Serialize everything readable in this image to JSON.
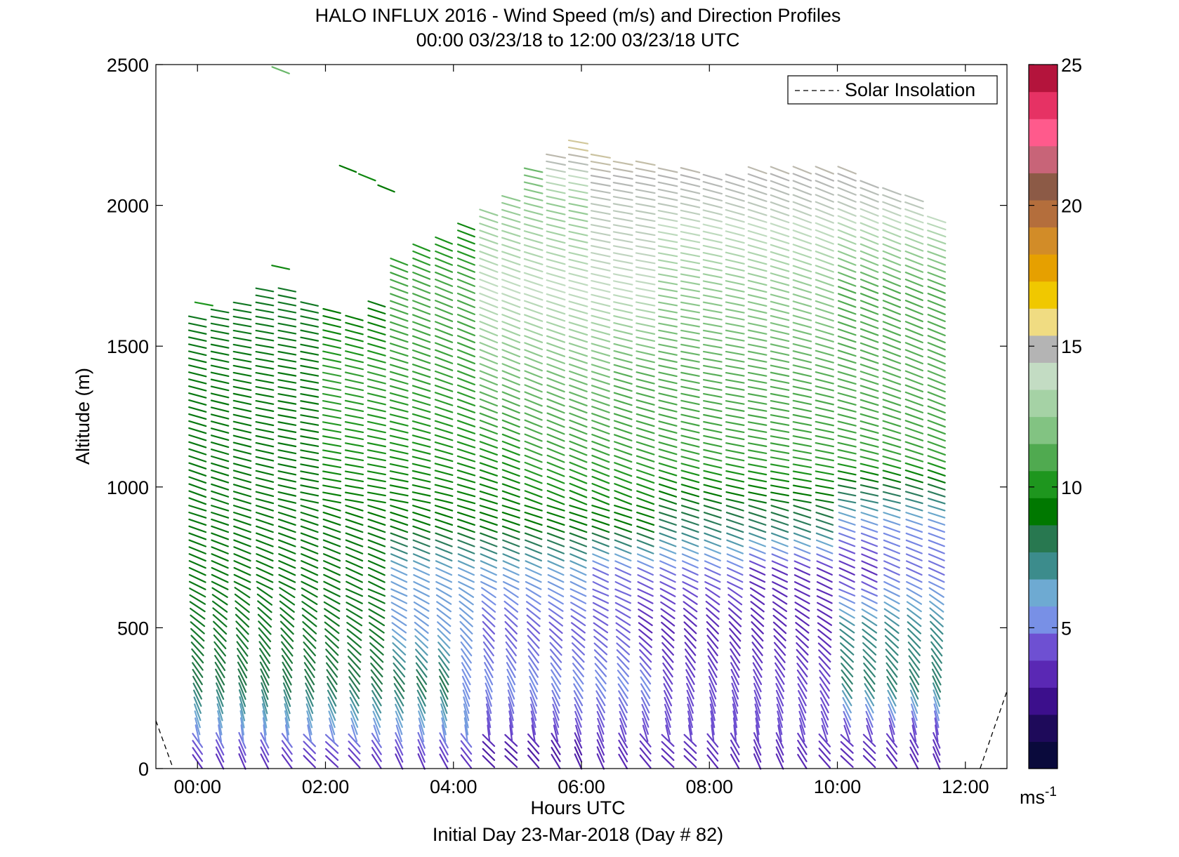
{
  "chart_data": {
    "type": "scatter",
    "title": "HALO INFLUX 2016 - Wind Speed (m/s) and Direction Profiles",
    "subtitle": "00:00 03/23/18 to 12:00 03/23/18  UTC",
    "xlabel": "Hours UTC",
    "ylabel": "Altitude (m)",
    "footer": "Initial Day 23-Mar-2018 (Day # 82)",
    "xlim": [
      -0.65,
      12.65
    ],
    "ylim": [
      0,
      2500
    ],
    "x_ticks": [
      0,
      2,
      4,
      6,
      8,
      10,
      12
    ],
    "x_tick_labels": [
      "00:00",
      "02:00",
      "04:00",
      "06:00",
      "08:00",
      "10:00",
      "12:00"
    ],
    "y_ticks": [
      0,
      500,
      1000,
      1500,
      2000,
      2500
    ],
    "y_tick_labels": [
      "0",
      "500",
      "1000",
      "1500",
      "2000",
      "2500"
    ],
    "grid": false,
    "legend": {
      "placement": "top-right",
      "entries": [
        "Solar Insolation"
      ]
    },
    "colorbar": {
      "min": 0,
      "max": 25,
      "ticks": [
        5,
        10,
        15,
        20,
        25
      ],
      "tick_labels": [
        "5",
        "10",
        "15",
        "20",
        "25"
      ],
      "unit_label": "ms",
      "unit_exponent": "-1",
      "colors": [
        "#0a0a3c",
        "#1e0a5a",
        "#3c0f8c",
        "#5a28b4",
        "#6e50d2",
        "#7890e6",
        "#6eaad2",
        "#3c8c8c",
        "#287850",
        "#007800",
        "#1e961e",
        "#50aa50",
        "#82c382",
        "#a5d2a5",
        "#c3dcc3",
        "#b4b4b4",
        "#f0dc82",
        "#f0c800",
        "#e6a000",
        "#d28c28",
        "#b46e3c",
        "#8c5a46",
        "#c86478",
        "#ff5a8c",
        "#e63264",
        "#b4143c"
      ]
    },
    "solar_insolation": [
      {
        "x": -0.65,
        "y": 170
      },
      {
        "x": -0.38,
        "y": 0
      },
      {
        "x": 12.23,
        "y": 0
      },
      {
        "x": 12.65,
        "y": 275
      }
    ],
    "wind_profiles": {
      "time_start": 0,
      "time_end": 11.75,
      "time_step": 0.35,
      "altitude_start": 25,
      "altitude_step": 25,
      "top_altitudes": [
        [
          0.0,
          1610
        ],
        [
          1.0,
          1700
        ],
        [
          1.4,
          1700
        ],
        [
          2.0,
          1650
        ],
        [
          2.5,
          1600
        ],
        [
          3.0,
          1700
        ],
        [
          3.2,
          1850
        ],
        [
          4.0,
          1900
        ],
        [
          4.3,
          1950
        ],
        [
          5.0,
          2050
        ],
        [
          5.3,
          2150
        ],
        [
          6.0,
          2250
        ],
        [
          6.5,
          2150
        ],
        [
          7.0,
          2150
        ],
        [
          8.0,
          2120
        ],
        [
          9.0,
          2130
        ],
        [
          10.0,
          2150
        ],
        [
          10.6,
          2070
        ],
        [
          11.2,
          2040
        ],
        [
          11.75,
          1910
        ]
      ],
      "speed_at": [
        {
          "z": 0,
          "regions": [
            [
              0,
              12,
              3.0
            ]
          ]
        },
        {
          "z": 60,
          "regions": [
            [
              0,
              4.3,
              3.8
            ],
            [
              4.3,
              6.0,
              2.5
            ],
            [
              6.0,
              12,
              3.2
            ]
          ]
        },
        {
          "z": 150,
          "regions": [
            [
              0,
              4.5,
              5.5
            ],
            [
              4.5,
              12,
              4.0
            ]
          ]
        },
        {
          "z": 300,
          "regions": [
            [
              0,
              4.0,
              8.0
            ],
            [
              4.0,
              7.0,
              5.0
            ],
            [
              7.0,
              9.8,
              3.8
            ],
            [
              9.8,
              12,
              7.5
            ]
          ]
        },
        {
          "z": 500,
          "regions": [
            [
              0,
              3.0,
              8.5
            ],
            [
              3.0,
              4.5,
              5.5
            ],
            [
              4.5,
              6.8,
              4.2
            ],
            [
              6.8,
              9.8,
              3.0
            ],
            [
              9.8,
              12,
              7.0
            ]
          ]
        },
        {
          "z": 700,
          "regions": [
            [
              0,
              3.0,
              8.8
            ],
            [
              3.0,
              6.0,
              5.8
            ],
            [
              6.0,
              8.5,
              4.5
            ],
            [
              8.5,
              10.5,
              3.2
            ],
            [
              10.5,
              12,
              4.5
            ]
          ]
        },
        {
          "z": 850,
          "regions": [
            [
              0,
              7.0,
              8.8
            ],
            [
              7.0,
              10.0,
              7.5
            ],
            [
              10.0,
              12,
              5.0
            ]
          ]
        },
        {
          "z": 1100,
          "regions": [
            [
              0,
              2.0,
              8.8
            ],
            [
              2.0,
              5.0,
              9.8
            ],
            [
              5.0,
              12,
              10.5
            ]
          ]
        },
        {
          "z": 1400,
          "regions": [
            [
              0,
              2.0,
              8.8
            ],
            [
              2.0,
              4.5,
              10.5
            ],
            [
              4.5,
              6.5,
              11.8
            ],
            [
              6.5,
              12,
              11.2
            ]
          ]
        },
        {
          "z": 1700,
          "regions": [
            [
              0,
              3.0,
              8.5
            ],
            [
              3.0,
              4.5,
              11.0
            ],
            [
              4.5,
              7.0,
              14.0
            ],
            [
              7.0,
              10.0,
              12.5
            ],
            [
              10.0,
              12,
              11.0
            ]
          ]
        },
        {
          "z": 2000,
          "regions": [
            [
              0,
              4.5,
              9.0
            ],
            [
              4.5,
              6.0,
              12.5
            ],
            [
              6.0,
              12,
              14.5
            ]
          ]
        },
        {
          "z": 2200,
          "regions": [
            [
              0,
              5.5,
              11.0
            ],
            [
              5.5,
              12,
              15.5
            ]
          ]
        }
      ],
      "isolated_barbs": [
        {
          "time": 1.3,
          "altitude": 2480,
          "speed": 11.5
        },
        {
          "time": 2.35,
          "altitude": 2130,
          "speed": 9.0
        },
        {
          "time": 2.65,
          "altitude": 2100,
          "speed": 9.5
        },
        {
          "time": 2.95,
          "altitude": 2060,
          "speed": 9.0
        },
        {
          "time": 1.3,
          "altitude": 1780,
          "speed": 9.5
        },
        {
          "time": 0.1,
          "altitude": 1650,
          "speed": 10.0
        }
      ]
    }
  }
}
